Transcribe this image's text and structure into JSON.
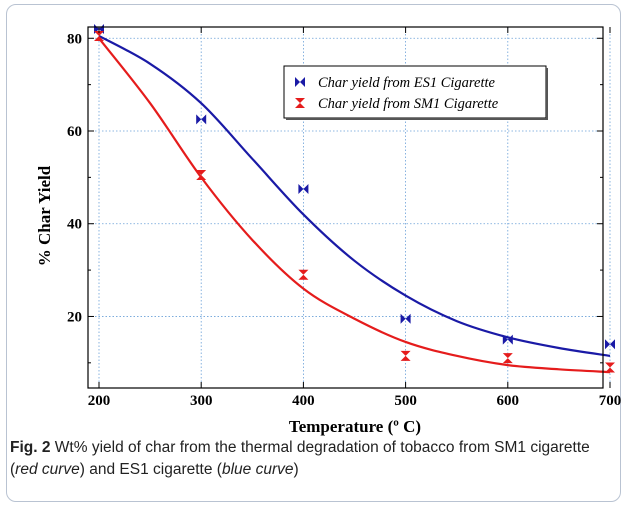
{
  "chart_data": {
    "type": "scatter",
    "xlabel": "Temperature (º C)",
    "ylabel": "% Char Yield",
    "xlim": [
      200,
      700
    ],
    "ylim": [
      5,
      82
    ],
    "x_ticks": [
      200,
      300,
      400,
      500,
      600,
      700
    ],
    "y_ticks": [
      20,
      40,
      60,
      80
    ],
    "grid": true,
    "legend_position": "top-right",
    "series": [
      {
        "name": "Char yield from ES1 Cigarette",
        "color": "#1a1aa6",
        "marker": "bowtie",
        "x": [
          200,
          300,
          400,
          500,
          600,
          700
        ],
        "y": [
          82,
          62.5,
          47.5,
          19.5,
          15,
          14
        ],
        "fit_curve": {
          "x": [
            200,
            250,
            300,
            350,
            400,
            450,
            500,
            550,
            600,
            650,
            700
          ],
          "y": [
            80.5,
            74.5,
            66,
            54,
            42,
            32,
            24.5,
            19,
            15.5,
            13.2,
            11.5
          ]
        }
      },
      {
        "name": "Char yield from SM1 Cigarette",
        "color": "#e51c1c",
        "marker": "hourglass",
        "x": [
          200,
          300,
          400,
          500,
          600,
          700
        ],
        "y": [
          80.5,
          50.5,
          29,
          11.5,
          11,
          9
        ],
        "fit_curve": {
          "x": [
            200,
            250,
            300,
            350,
            400,
            450,
            500,
            550,
            600,
            650,
            700
          ],
          "y": [
            80,
            66,
            50,
            36.5,
            26,
            19.5,
            14.5,
            11.5,
            9.5,
            8.6,
            8
          ]
        }
      }
    ]
  },
  "caption": {
    "label": "Fig. 2",
    "text_1": "  Wt% yield of char from the thermal degradation of tobacco from SM1 cigarette (",
    "red_curve": "red curve",
    "text_2": ") and ES1 cigarette (",
    "blue_curve": "blue curve",
    "text_3": ")"
  }
}
